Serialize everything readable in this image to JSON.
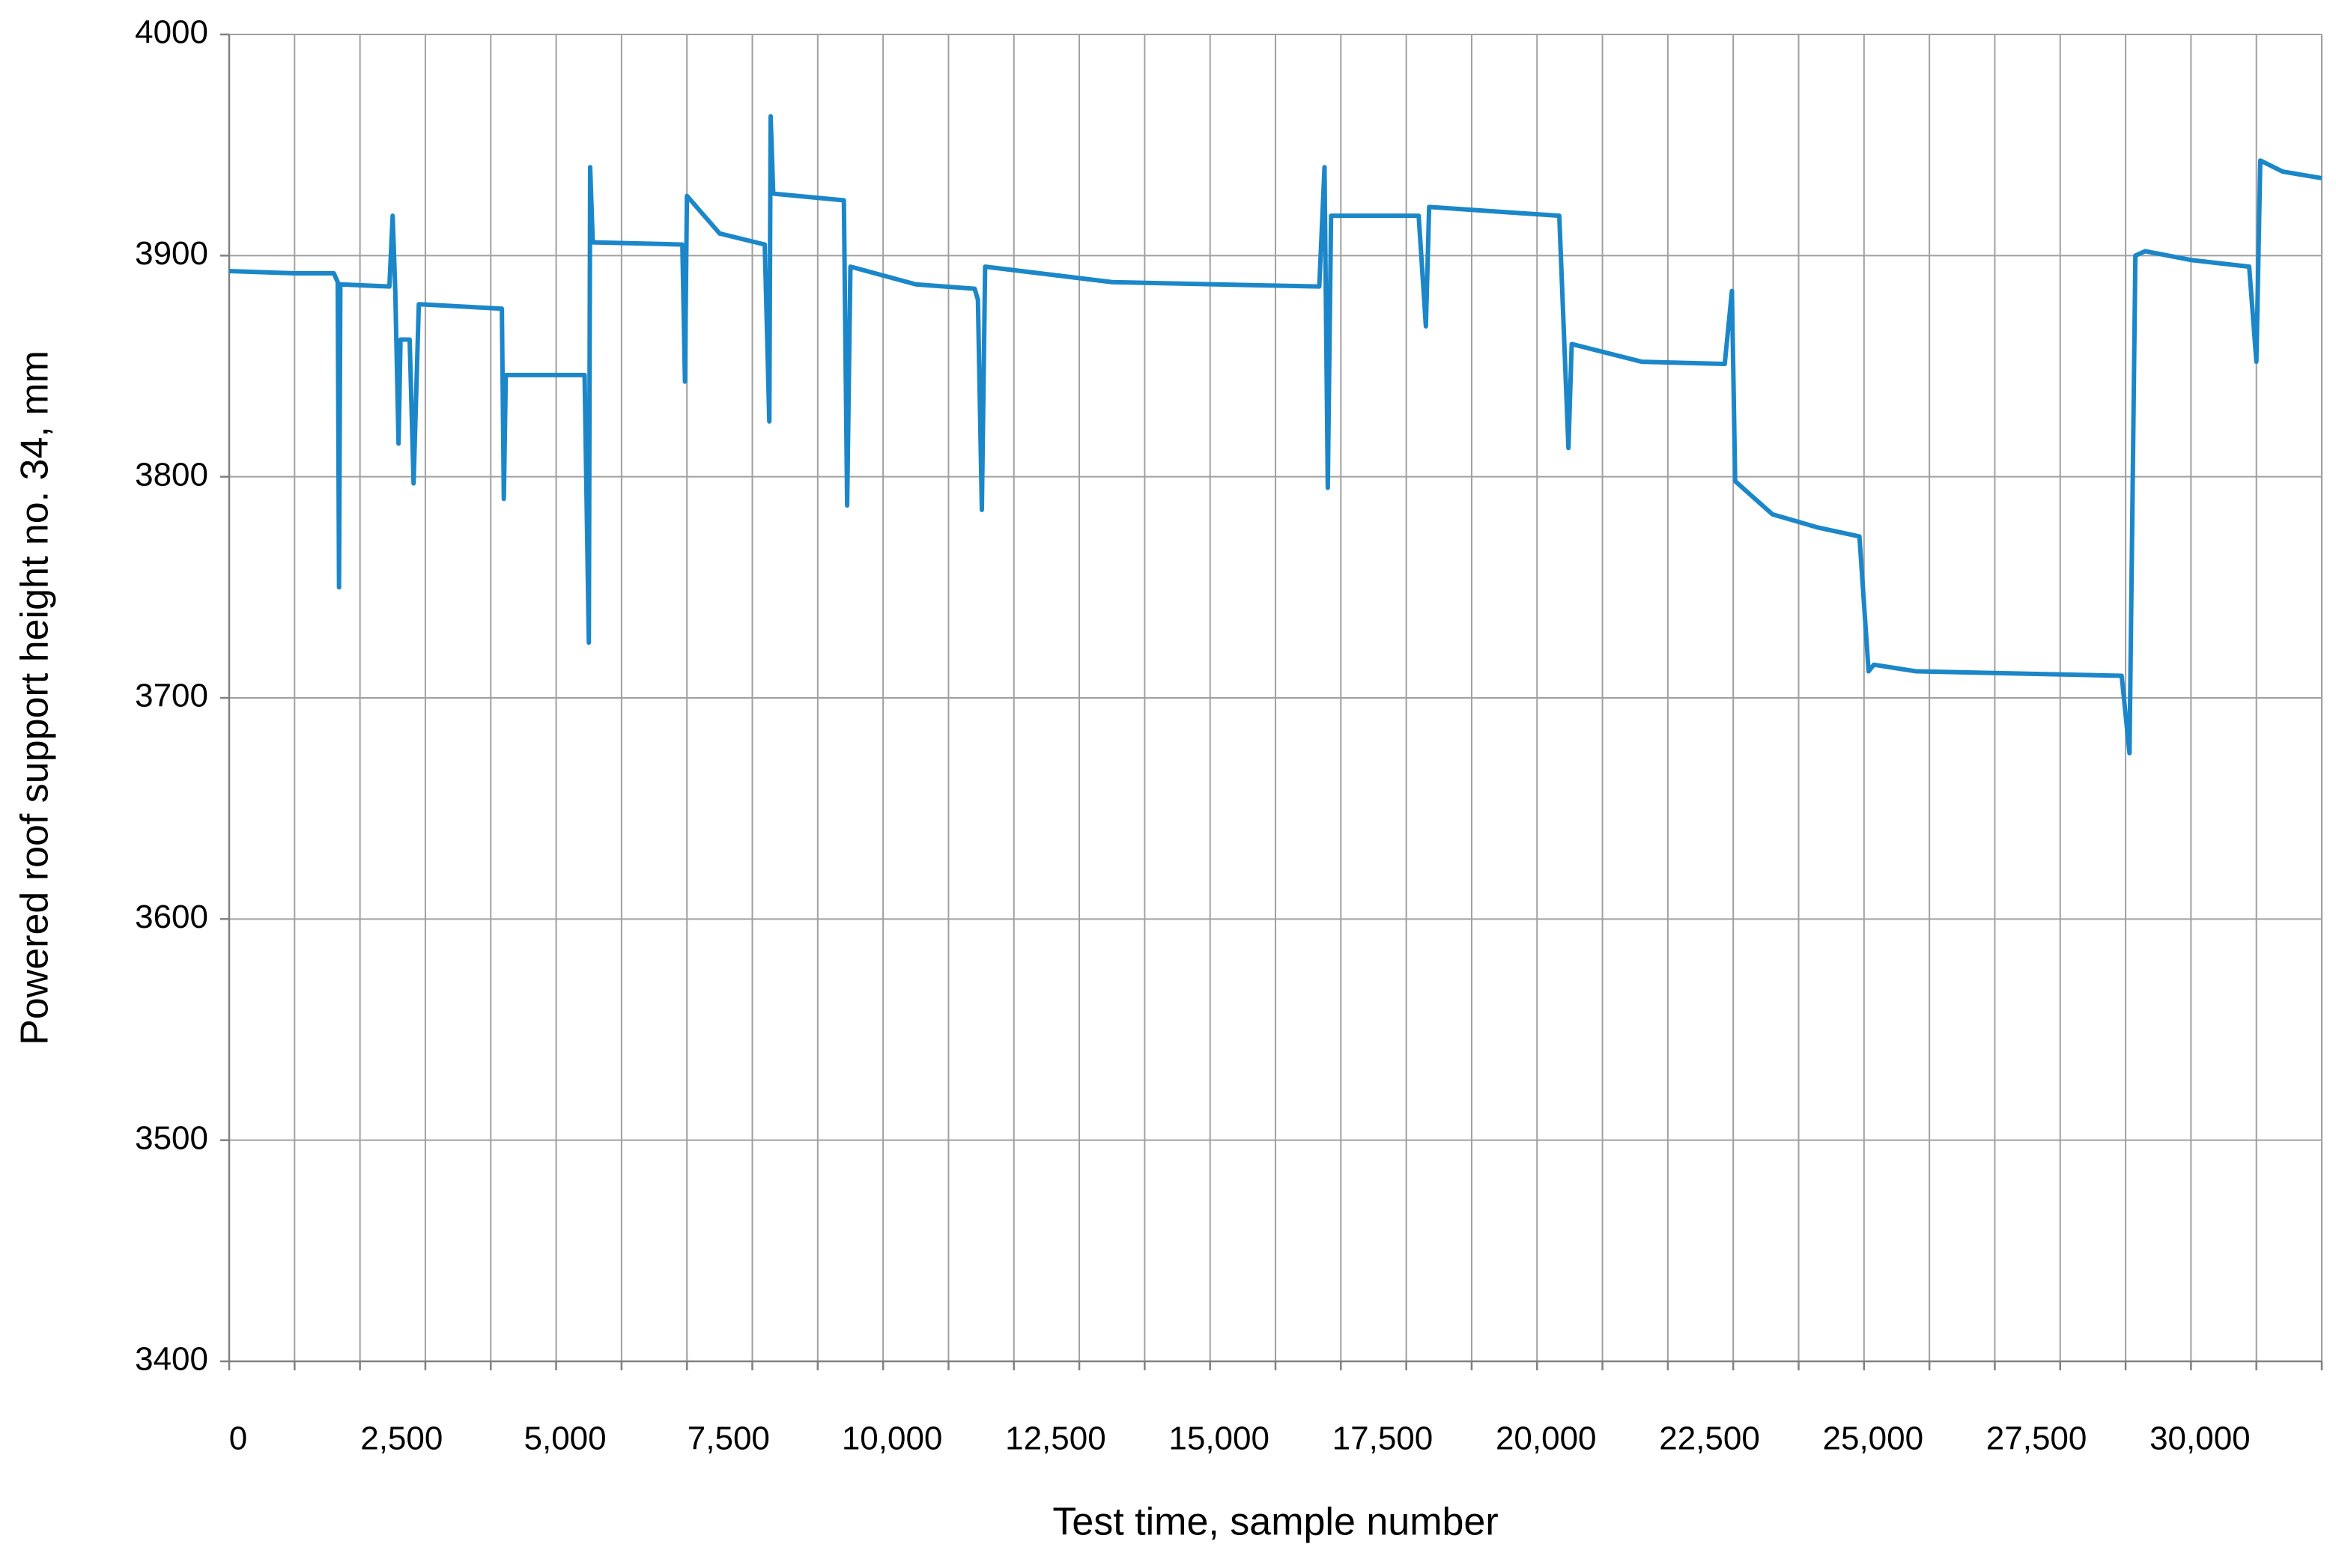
{
  "chart_data": {
    "type": "line",
    "xlabel": "Test time, sample number",
    "ylabel": "Powered roof support  height no. 34, mm",
    "x": [
      0,
      1000,
      1600,
      1660,
      1680,
      1700,
      2450,
      2500,
      2540,
      2590,
      2620,
      2760,
      2820,
      2900,
      4170,
      4200,
      4230,
      5435,
      5500,
      5520,
      5560,
      6930,
      6970,
      7000,
      7500,
      8190,
      8260,
      8280,
      8320,
      9400,
      9450,
      9500,
      10500,
      11400,
      11450,
      11510,
      11560,
      13500,
      16670,
      16750,
      16800,
      16850,
      18190,
      18300,
      18350,
      20340,
      20480,
      20530,
      21600,
      22870,
      22980,
      23030,
      23600,
      24300,
      24930,
      25070,
      25150,
      25800,
      28940,
      29060,
      29150,
      29300,
      30000,
      30890,
      31000,
      31060,
      31400,
      32000
    ],
    "series": [
      {
        "color": "#1b87c9",
        "values": [
          3893,
          3892,
          3892,
          3888,
          3750,
          3887,
          3886,
          3918,
          3884,
          3815,
          3862,
          3862,
          3797,
          3878,
          3876,
          3790,
          3846,
          3846,
          3725,
          3940,
          3906,
          3905,
          3843,
          3927,
          3910,
          3905,
          3825,
          3963,
          3928,
          3925,
          3787,
          3895,
          3887,
          3885,
          3880,
          3785,
          3895,
          3888,
          3886,
          3940,
          3795,
          3918,
          3918,
          3868,
          3922,
          3918,
          3813,
          3860,
          3852,
          3851,
          3884,
          3798,
          3783,
          3777,
          3773,
          3712,
          3715,
          3712,
          3710,
          3675,
          3900,
          3902,
          3898,
          3895,
          3852,
          3943,
          3938,
          3935
        ]
      }
    ],
    "xlim": [
      0,
      32000
    ],
    "xticks": [
      0,
      {
        "value": 2500,
        "label": "2,500"
      },
      {
        "value": 5000,
        "label": "5,000"
      },
      {
        "value": 7500,
        "label": "7,500"
      },
      {
        "value": 10000,
        "label": "10,000"
      },
      {
        "value": 12500,
        "label": "12,500"
      },
      {
        "value": 15000,
        "label": "15,000"
      },
      {
        "value": 17500,
        "label": "17,500"
      },
      {
        "value": 20000,
        "label": "20,000"
      },
      {
        "value": 22500,
        "label": "22,500"
      },
      {
        "value": 25000,
        "label": "25,000"
      },
      {
        "value": 27500,
        "label": "27,500"
      },
      {
        "value": 30000,
        "label": "30,000"
      }
    ],
    "x_gridlines": [
      0,
      1000,
      2000,
      3000,
      4000,
      5000,
      6000,
      7000,
      8000,
      9000,
      10000,
      11000,
      12000,
      13000,
      14000,
      15000,
      16000,
      17000,
      18000,
      19000,
      20000,
      21000,
      22000,
      23000,
      24000,
      25000,
      26000,
      27000,
      28000,
      29000,
      30000,
      31000,
      32000
    ],
    "ylim": [
      3400,
      4000
    ],
    "yticks": [
      3400,
      3500,
      3600,
      3700,
      3800,
      3900,
      4000
    ],
    "grid": true
  }
}
